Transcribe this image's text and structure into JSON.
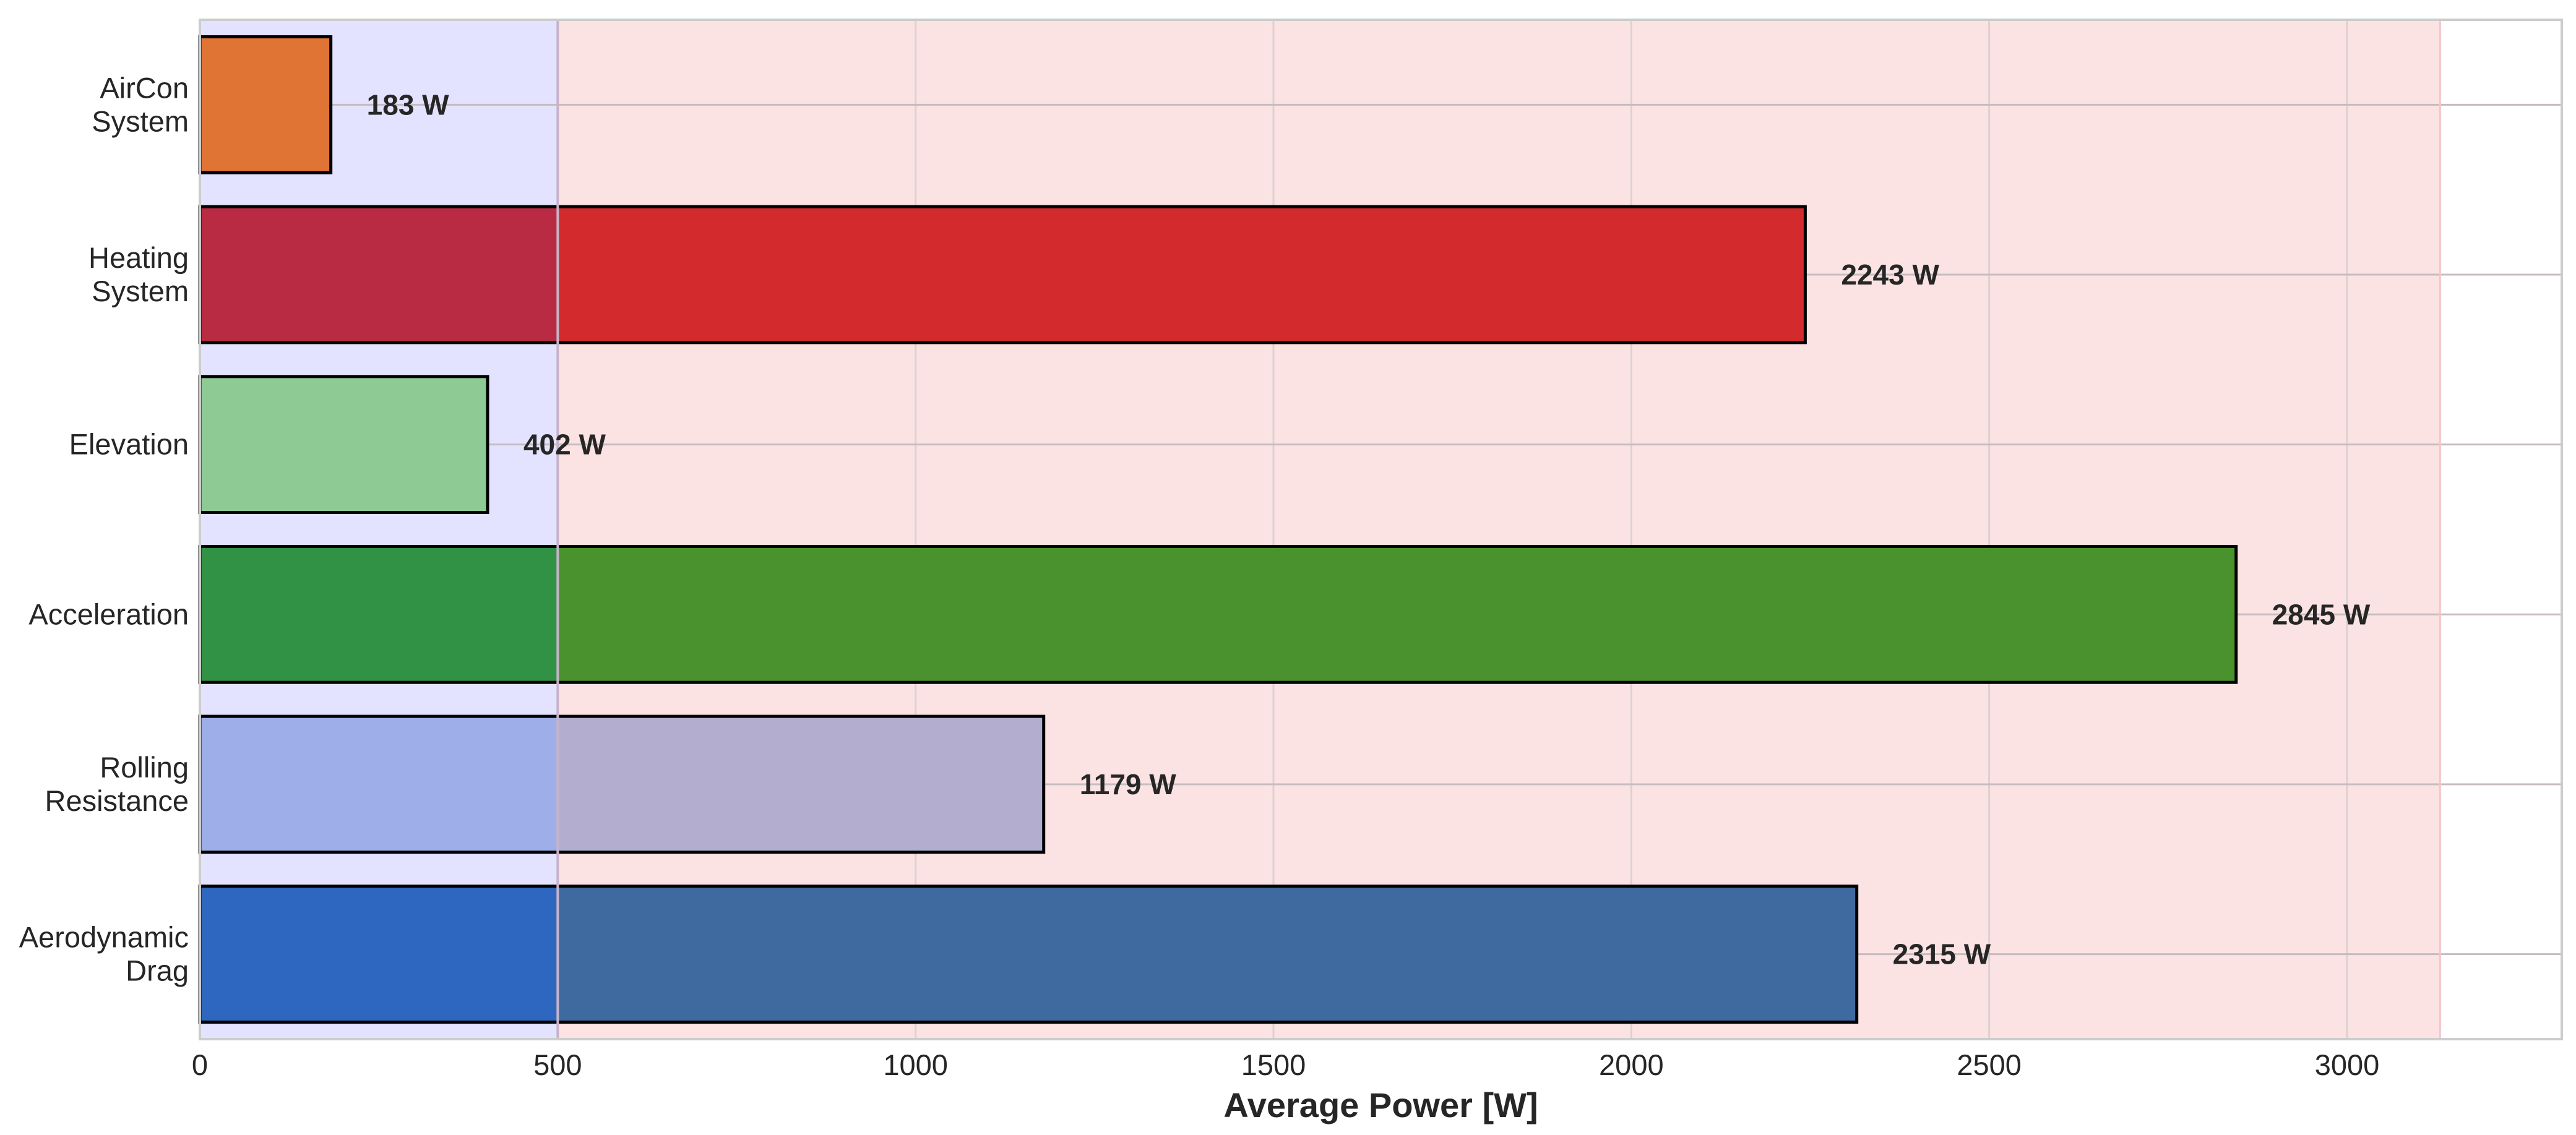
{
  "chart_data": {
    "type": "bar",
    "orientation": "horizontal",
    "title": "",
    "xlabel": "Average Power [W]",
    "ylabel": "",
    "xlim": [
      0,
      3300
    ],
    "xticks": [
      0,
      500,
      1000,
      1500,
      2000,
      2500,
      3000
    ],
    "grid": true,
    "categories": [
      "Aerodynamic\nDrag",
      "Rolling\nResistance",
      "Acceleration",
      "Elevation",
      "Heating\nSystem",
      "AirCon\nSystem"
    ],
    "values": [
      2315,
      1179,
      2845,
      402,
      2243,
      183
    ],
    "value_labels": [
      "2315 W",
      "1179 W",
      "2845 W",
      "402 W",
      "2243 W",
      "183 W"
    ],
    "bar_colors": [
      "#3f6a9f",
      "#b3aecf",
      "#4a922e",
      "#8dca94",
      "#d32b2d",
      "#e07434"
    ],
    "bar_colors_in_blue_region": [
      "#2e67bf",
      "#9eaee8",
      "#319145",
      "#8dca94",
      "#b92b43",
      "#e07434"
    ],
    "shaded_regions": [
      {
        "from": 0,
        "to": 500,
        "color": "#e3e3ff"
      },
      {
        "from": 500,
        "to": 3130,
        "color": "#fce3e3"
      }
    ]
  }
}
